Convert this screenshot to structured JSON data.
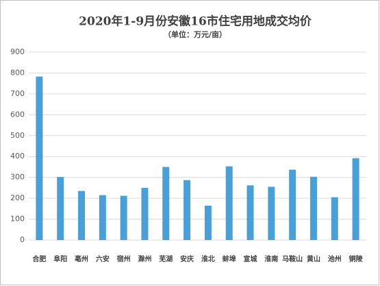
{
  "chart_data": {
    "type": "bar",
    "title": "2020年1-9月份安徽16市住宅用地成交均价",
    "subtitle": "（单位：万元/亩）",
    "categories": [
      "合肥",
      "阜阳",
      "亳州",
      "六安",
      "宿州",
      "滁州",
      "芜湖",
      "安庆",
      "淮北",
      "蚌埠",
      "宣城",
      "淮南",
      "马鞍山",
      "黄山",
      "池州",
      "铜陵"
    ],
    "values": [
      783,
      302,
      235,
      215,
      212,
      250,
      350,
      287,
      165,
      353,
      262,
      255,
      337,
      303,
      205,
      392
    ],
    "color": "#4a9fd6",
    "ylim": [
      0,
      900
    ],
    "yticks": [
      0,
      100,
      200,
      300,
      400,
      500,
      600,
      700,
      800,
      900
    ],
    "grid": true
  }
}
